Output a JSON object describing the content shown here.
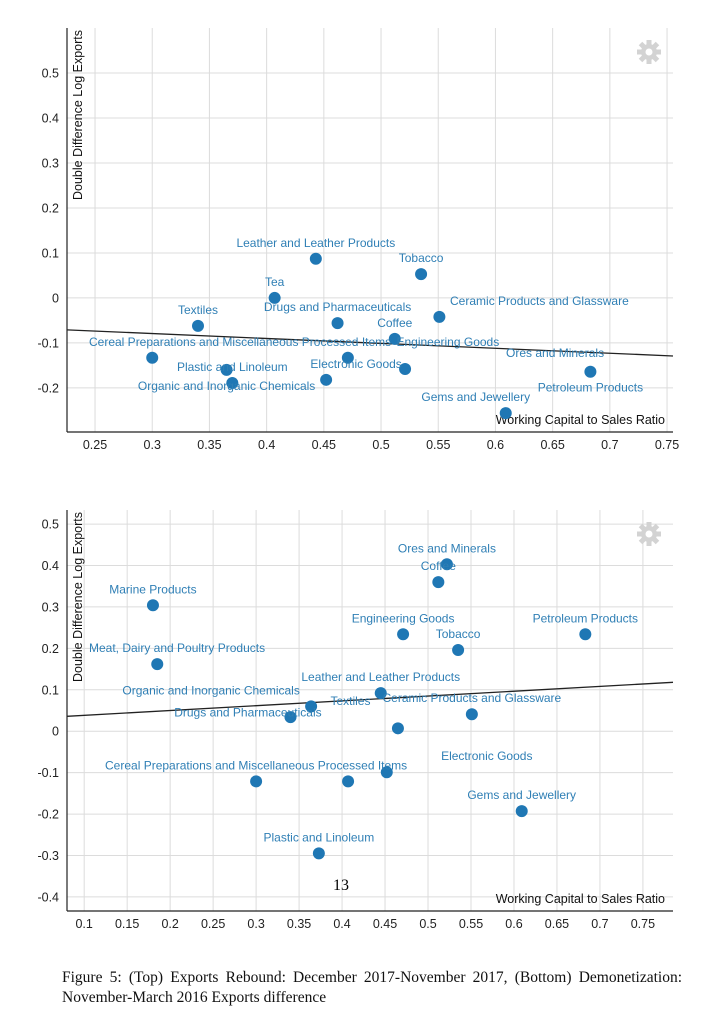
{
  "chart_data": [
    {
      "type": "scatter",
      "xlabel": "Working Capital to Sales Ratio",
      "ylabel": "Double Difference Log Exports",
      "xlim": [
        0.2255,
        0.7552
      ],
      "ylim": [
        -0.298,
        0.6
      ],
      "xticks": [
        0.25,
        0.3,
        0.35,
        0.4,
        0.45,
        0.5,
        0.55,
        0.6,
        0.65,
        0.7,
        0.75
      ],
      "xtick_labels": [
        "0.25",
        "0.3",
        "0.35",
        "0.4",
        "0.45",
        "0.5",
        "0.55",
        "0.6",
        "0.65",
        "0.7",
        "0.75"
      ],
      "yticks": [
        0.5,
        0.4,
        0.3,
        0.2,
        0.1,
        0,
        -0.1,
        -0.2
      ],
      "ytick_labels": [
        "0.5",
        "0.4",
        "0.3",
        "0.2",
        "0.1",
        "0",
        "-0.1",
        "-0.2"
      ],
      "grid": true,
      "point_color": "#1f77b4",
      "label_color": "#2f7fb5",
      "trendline": {
        "x": [
          0.2255,
          0.7552
        ],
        "y": [
          -0.071,
          -0.129
        ]
      },
      "points": [
        {
          "label": "Leather and Leather Products",
          "x": 0.443,
          "y": 0.087
        },
        {
          "label": "Tobacco",
          "x": 0.535,
          "y": 0.053
        },
        {
          "label": "Tea",
          "x": 0.407,
          "y": 0.0
        },
        {
          "label": "Textiles",
          "x": 0.34,
          "y": -0.062
        },
        {
          "label": "Drugs and Pharmaceuticals",
          "x": 0.462,
          "y": -0.056
        },
        {
          "label": "Ceramic Products and Glassware",
          "x": 0.551,
          "y": -0.042
        },
        {
          "label": "Coffee",
          "x": 0.512,
          "y": -0.091
        },
        {
          "label": "Cereal Preparations and Miscellaneous Processed Items",
          "x": 0.3,
          "y": -0.133
        },
        {
          "label": "Organic and Inorganic Chemicals",
          "x": 0.365,
          "y": -0.16
        },
        {
          "label": "Plastic and Linoleum",
          "x": 0.37,
          "y": -0.189
        },
        {
          "label": "Engineering Goods",
          "x": 0.471,
          "y": -0.133
        },
        {
          "label": "Electronic Goods",
          "x": 0.452,
          "y": -0.182
        },
        {
          "label": "Ores and Minerals",
          "x": 0.521,
          "y": -0.158
        },
        {
          "label": "Petroleum Products",
          "x": 0.683,
          "y": -0.164
        },
        {
          "label": "Gems and Jewellery",
          "x": 0.609,
          "y": -0.256
        }
      ]
    },
    {
      "type": "scatter",
      "xlabel": "Working Capital to Sales Ratio",
      "ylabel": "Double Difference Log Exports",
      "xlim": [
        0.08,
        0.785
      ],
      "ylim": [
        -0.434,
        0.534
      ],
      "xticks": [
        0.1,
        0.15,
        0.2,
        0.25,
        0.3,
        0.35,
        0.4,
        0.45,
        0.5,
        0.55,
        0.6,
        0.65,
        0.7,
        0.75
      ],
      "xtick_labels": [
        "0.1",
        "0.15",
        "0.2",
        "0.25",
        "0.3",
        "0.35",
        "0.4",
        "0.45",
        "0.5",
        "0.55",
        "0.6",
        "0.65",
        "0.7",
        "0.75"
      ],
      "yticks": [
        0.5,
        0.4,
        0.3,
        0.2,
        0.1,
        0,
        -0.1,
        -0.2,
        -0.3,
        -0.4
      ],
      "ytick_labels": [
        "0.5",
        "0.4",
        "0.3",
        "0.2",
        "0.1",
        "0",
        "-0.1",
        "-0.2",
        "-0.3",
        "-0.4"
      ],
      "grid": true,
      "point_color": "#1f77b4",
      "label_color": "#2f7fb5",
      "trendline": {
        "x": [
          0.08,
          0.785
        ],
        "y": [
          0.036,
          0.118
        ]
      },
      "points": [
        {
          "label": "Ores and Minerals",
          "x": 0.522,
          "y": 0.403
        },
        {
          "label": "Coffee",
          "x": 0.512,
          "y": 0.36
        },
        {
          "label": "Marine Products",
          "x": 0.18,
          "y": 0.304
        },
        {
          "label": "Meat, Dairy and Poultry Products",
          "x": 0.185,
          "y": 0.162
        },
        {
          "label": "Engineering Goods",
          "x": 0.471,
          "y": 0.234
        },
        {
          "label": "Tobacco",
          "x": 0.535,
          "y": 0.196
        },
        {
          "label": "Petroleum Products",
          "x": 0.683,
          "y": 0.234
        },
        {
          "label": "Leather and Leather Products",
          "x": 0.445,
          "y": 0.092
        },
        {
          "label": "Organic and Inorganic Chemicals",
          "x": 0.364,
          "y": 0.06
        },
        {
          "label": "Textiles",
          "x": 0.34,
          "y": 0.034
        },
        {
          "label": "Ceramic Products and Glassware",
          "x": 0.551,
          "y": 0.041
        },
        {
          "label": "Drugs and Pharmaceuticals",
          "x": 0.465,
          "y": 0.007
        },
        {
          "label": "Cereal Preparations and Miscellaneous Processed Items",
          "x": 0.3,
          "y": -0.121
        },
        {
          "label": "",
          "x": 0.407,
          "y": -0.121
        },
        {
          "label": "Electronic Goods",
          "x": 0.452,
          "y": -0.099
        },
        {
          "label": "Gems and Jewellery",
          "x": 0.609,
          "y": -0.193
        },
        {
          "label": "Plastic and Linoleum",
          "x": 0.373,
          "y": -0.295
        }
      ]
    }
  ],
  "page_number": "13",
  "caption": "Figure 5: (Top) Exports Rebound: December 2017-November 2017, (Bottom) Demonetization: November-March 2016 Exports difference",
  "icons": {
    "settings": "gear-icon"
  }
}
